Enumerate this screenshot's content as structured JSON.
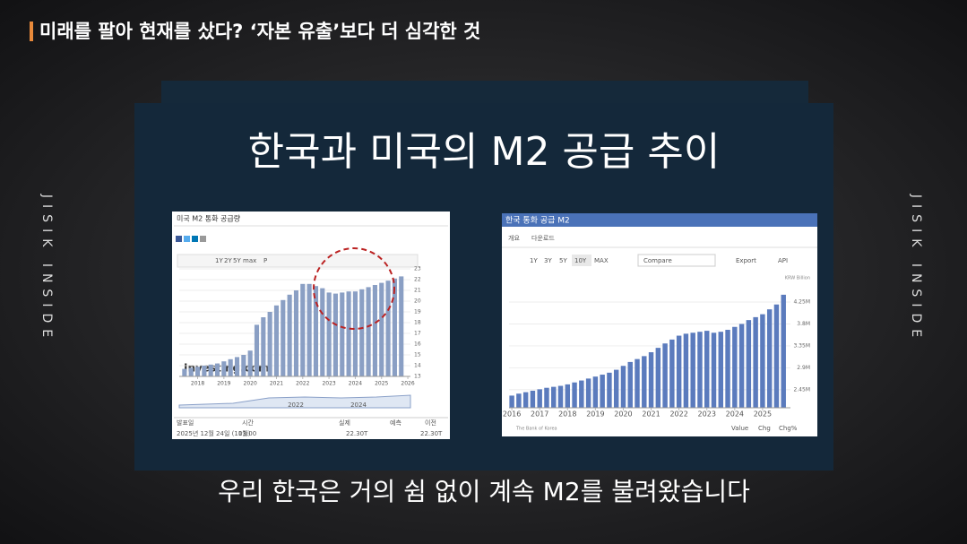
{
  "header": {
    "title": "미래를 팔아 현재를 샀다? ‘자본 유출’보다 더 심각한 것"
  },
  "side_label": "JISIK INSIDE",
  "slide": {
    "title": "한국과 미국의 M2 공급 추이",
    "caption": "우리 한국은 거의 쉼 없이 계속 M2를 불려왔습니다"
  },
  "us_panel": {
    "title": "미국 M2 통화 공급량",
    "ranges": [
      "1Y",
      "2Y",
      "5Y",
      "max",
      "P"
    ],
    "watermark": "Investing.com",
    "navigator": [
      "2022",
      "2024"
    ],
    "table": {
      "headers": [
        "발표일",
        "시간",
        "실제",
        "예측",
        "이전"
      ],
      "row": [
        "2025년 12월 24일 (11월)",
        "03:00",
        "22.30T",
        "22.30T"
      ]
    }
  },
  "kr_panel": {
    "title": "한국 통화 공급 M2",
    "tabs": [
      "개요",
      "다운로드"
    ],
    "ranges": [
      "1Y",
      "3Y",
      "5Y",
      "10Y",
      "MAX"
    ],
    "compare": "Compare",
    "export": "Export",
    "api": "API",
    "unit": "KRW Billion",
    "source": "The Bank of Korea",
    "footer": [
      "Value",
      "Chg",
      "Chg%"
    ]
  },
  "chart_data": [
    {
      "type": "bar",
      "color": "#8a9fc4",
      "x": [
        2017.5,
        2017.75,
        2018,
        2018.25,
        2018.5,
        2018.75,
        2019,
        2019.25,
        2019.5,
        2019.75,
        2020,
        2020.25,
        2020.5,
        2020.75,
        2021,
        2021.25,
        2021.5,
        2021.75,
        2022,
        2022.25,
        2022.5,
        2022.75,
        2023,
        2023.25,
        2023.5,
        2023.75,
        2024,
        2024.25,
        2024.5,
        2024.75,
        2025,
        2025.25,
        2025.5,
        2025.75
      ],
      "values": [
        13.7,
        13.8,
        13.9,
        14.0,
        14.1,
        14.2,
        14.4,
        14.6,
        14.8,
        15.0,
        15.4,
        17.8,
        18.5,
        19.0,
        19.6,
        20.1,
        20.6,
        21.0,
        21.6,
        21.6,
        21.4,
        21.2,
        20.8,
        20.7,
        20.8,
        20.9,
        20.9,
        21.1,
        21.3,
        21.5,
        21.7,
        21.9,
        22.1,
        22.3
      ],
      "xlim": [
        2017.3,
        2026.1
      ],
      "xticks": [
        2018,
        2019,
        2020,
        2021,
        2022,
        2023,
        2024,
        2025,
        2026
      ],
      "ylim": [
        13,
        23
      ],
      "yticks": [
        13,
        14,
        15,
        16,
        17,
        18,
        19,
        20,
        21,
        22,
        23
      ],
      "grid": true
    },
    {
      "type": "bar",
      "color": "#5b7bbd",
      "x": [
        2016,
        2016.25,
        2016.5,
        2016.75,
        2017,
        2017.25,
        2017.5,
        2017.75,
        2018,
        2018.25,
        2018.5,
        2018.75,
        2019,
        2019.25,
        2019.5,
        2019.75,
        2020,
        2020.25,
        2020.5,
        2020.75,
        2021,
        2021.25,
        2021.5,
        2021.75,
        2022,
        2022.25,
        2022.5,
        2022.75,
        2023,
        2023.25,
        2023.5,
        2023.75,
        2024,
        2024.25,
        2024.5,
        2024.75,
        2025,
        2025.25,
        2025.5,
        2025.75
      ],
      "values": [
        2330000,
        2370000,
        2400000,
        2430000,
        2460000,
        2490000,
        2510000,
        2530000,
        2560000,
        2600000,
        2640000,
        2680000,
        2720000,
        2760000,
        2800000,
        2860000,
        2940000,
        3020000,
        3080000,
        3140000,
        3220000,
        3310000,
        3400000,
        3480000,
        3560000,
        3600000,
        3620000,
        3640000,
        3660000,
        3620000,
        3640000,
        3680000,
        3740000,
        3800000,
        3880000,
        3940000,
        4000000,
        4100000,
        4200000,
        4400000
      ],
      "xlim": [
        2015.9,
        2026.0
      ],
      "xticks": [
        2016,
        2017,
        2018,
        2019,
        2020,
        2021,
        2022,
        2023,
        2024,
        2025
      ],
      "ylim": [
        2080000,
        4600000
      ],
      "yticks": [
        {
          "value": 2450000,
          "label": "2.45M"
        },
        {
          "value": 2900000,
          "label": "2.9M"
        },
        {
          "value": 3350000,
          "label": "3.35M"
        },
        {
          "value": 3800000,
          "label": "3.8M"
        },
        {
          "value": 4250000,
          "label": "4.25M"
        }
      ],
      "grid": true
    }
  ]
}
